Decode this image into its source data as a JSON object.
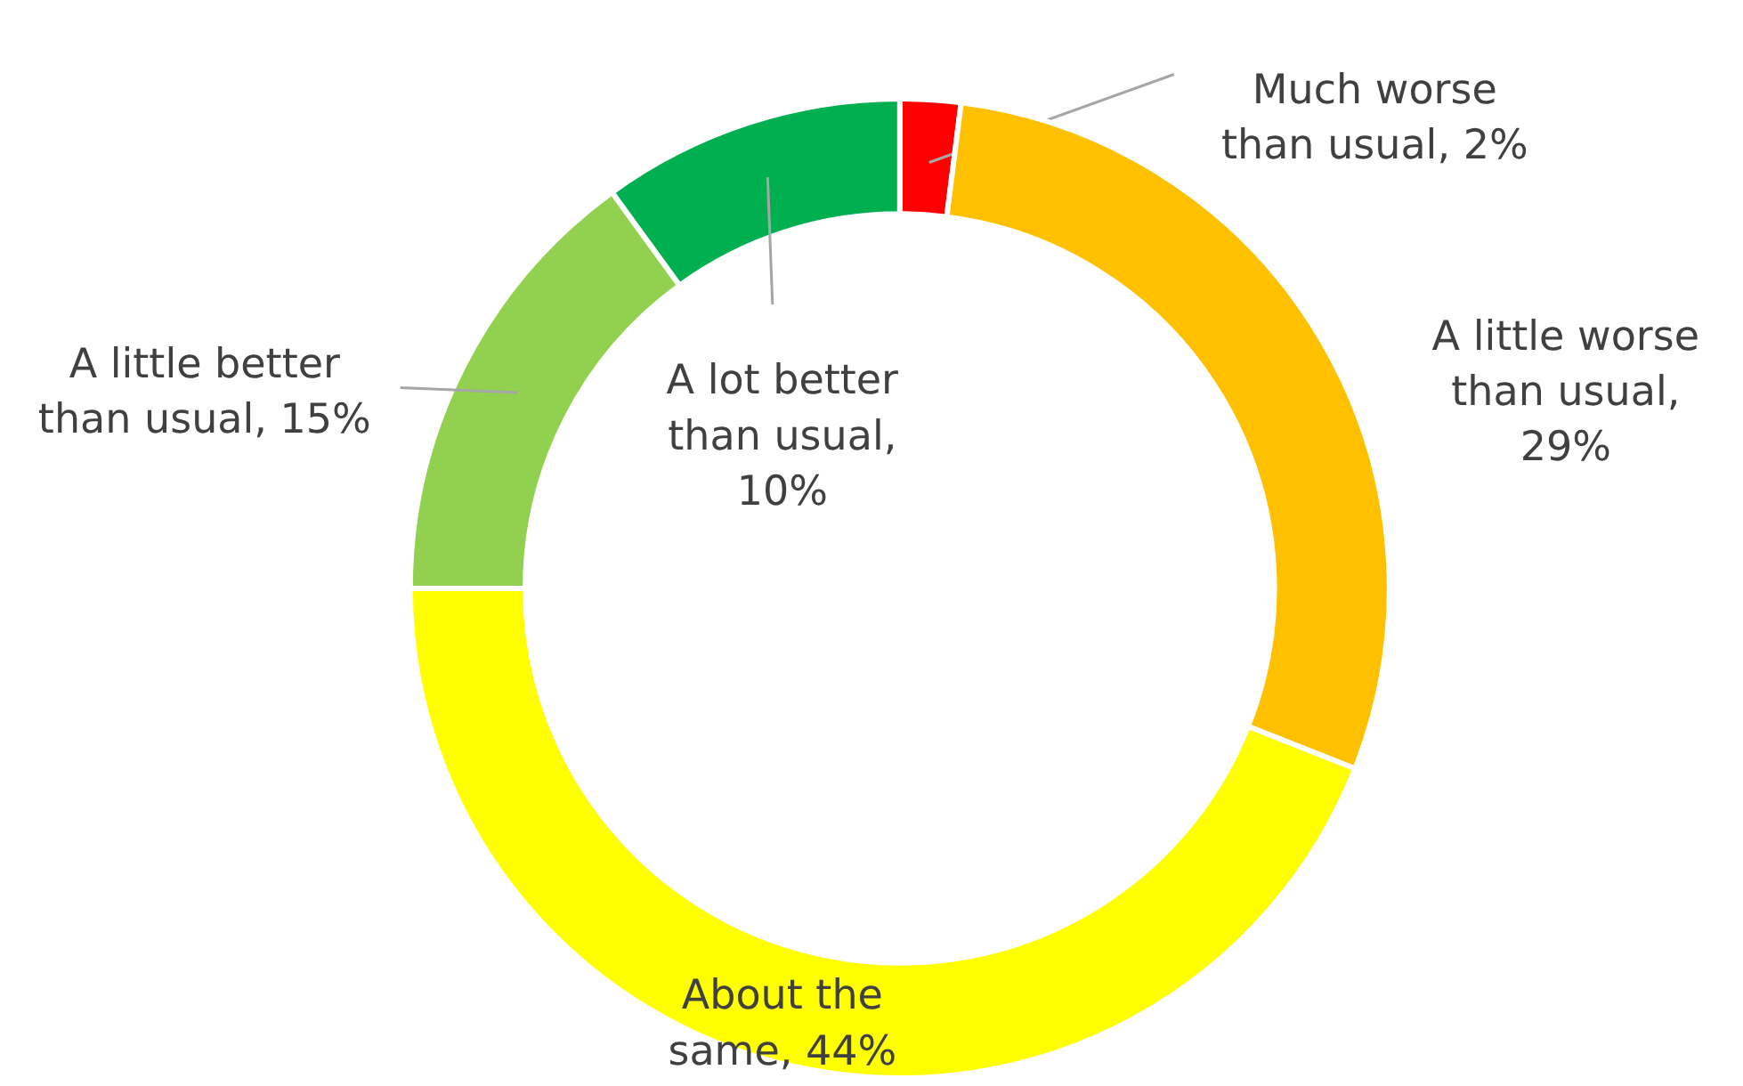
{
  "chart_data": {
    "type": "donut",
    "categories": [
      "Much worse than usual, 2%",
      "A little worse than usual, 29%",
      "About the same, 44%",
      "A little better than usual, 15%",
      "A lot better than usual, 10%"
    ],
    "values": [
      2,
      29,
      44,
      15,
      10
    ],
    "colors": [
      "#ff0000",
      "#ffc000",
      "#ffff00",
      "#92d050",
      "#00b050"
    ]
  }
}
